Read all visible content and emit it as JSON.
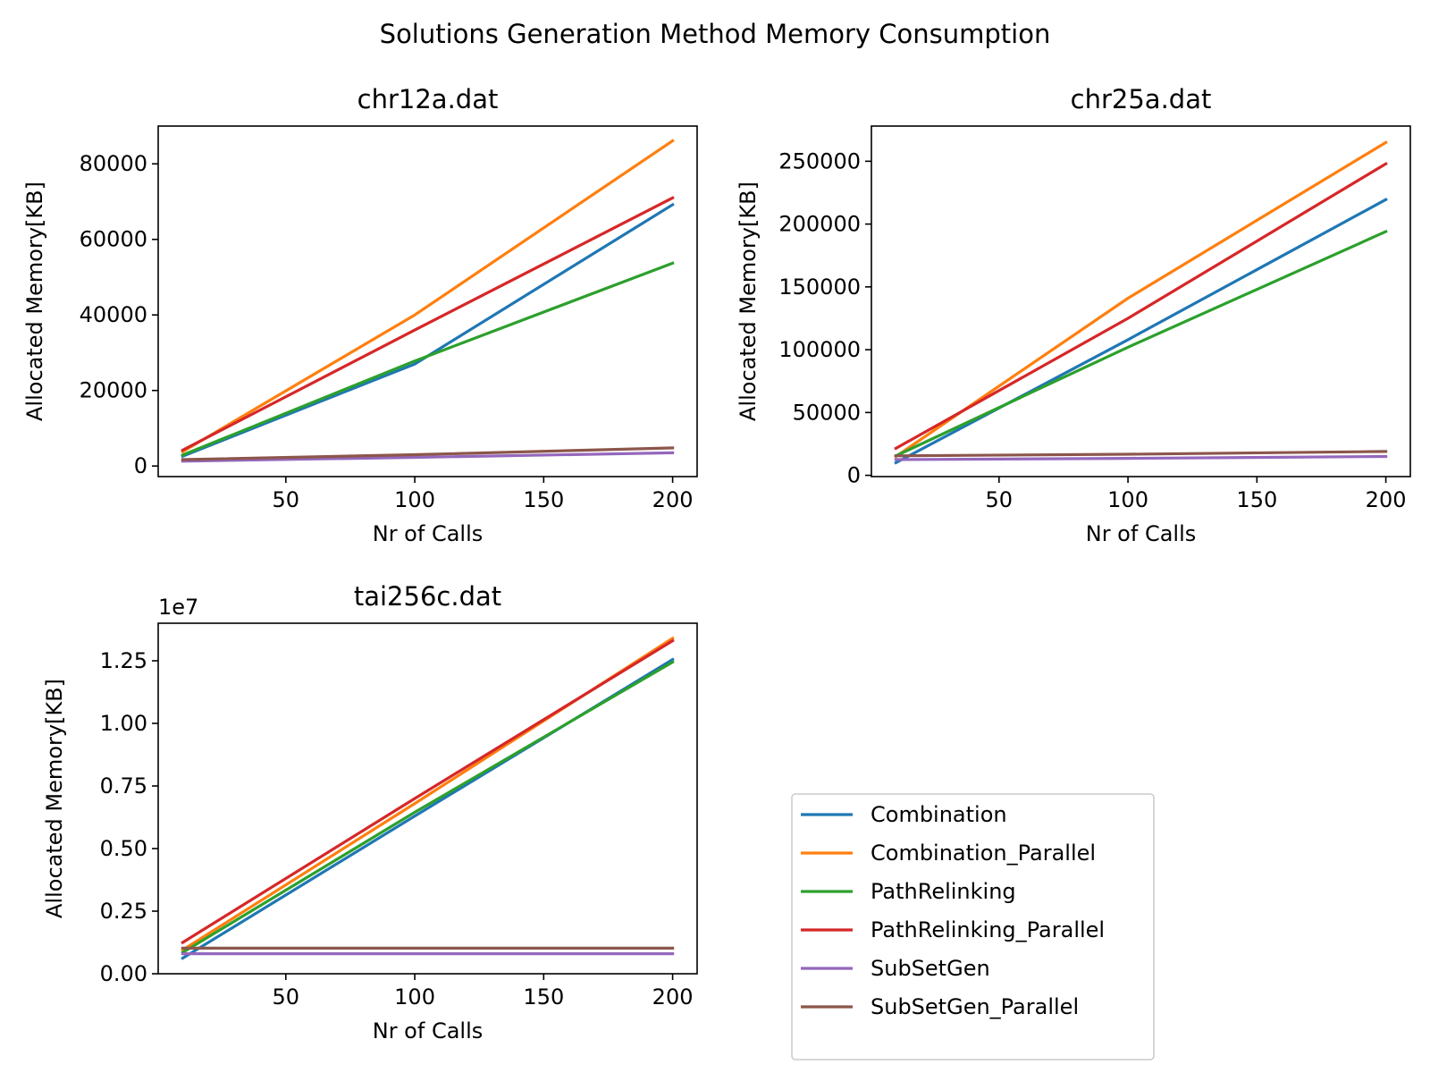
{
  "figure_title": "Solutions Generation Method Memory Consumption",
  "legend": {
    "placement": "lower-right empty panel",
    "entries": [
      {
        "label": "Combination",
        "color": "#1f77b4"
      },
      {
        "label": "Combination_Parallel",
        "color": "#ff7f0e"
      },
      {
        "label": "PathRelinking",
        "color": "#2ca02c"
      },
      {
        "label": "PathRelinking_Parallel",
        "color": "#d62728"
      },
      {
        "label": "SubSetGen",
        "color": "#9467bd"
      },
      {
        "label": "SubSetGen_Parallel",
        "color": "#8c564b"
      }
    ]
  },
  "chart_data": [
    {
      "type": "line",
      "title": "chr12a.dat",
      "xlabel": "Nr of Calls",
      "ylabel": "Allocated Memory[KB]",
      "x": [
        10,
        100,
        200
      ],
      "xticks": [
        50,
        100,
        150,
        200
      ],
      "xlim": [
        0.5,
        209.5
      ],
      "yticks": [
        0,
        20000,
        40000,
        60000,
        80000
      ],
      "ytick_labels": [
        "0",
        "20000",
        "40000",
        "60000",
        "80000"
      ],
      "ylim": [
        -2800,
        90000
      ],
      "offset_label": "",
      "grid": false,
      "series": [
        {
          "name": "Combination",
          "color": "#1f77b4",
          "values": [
            2600,
            27000,
            69200
          ]
        },
        {
          "name": "Combination_Parallel",
          "color": "#ff7f0e",
          "values": [
            3800,
            40000,
            86100
          ]
        },
        {
          "name": "PathRelinking",
          "color": "#2ca02c",
          "values": [
            2900,
            27800,
            53700
          ]
        },
        {
          "name": "PathRelinking_Parallel",
          "color": "#d62728",
          "values": [
            4200,
            36000,
            71000
          ]
        },
        {
          "name": "SubSetGen",
          "color": "#9467bd",
          "values": [
            1300,
            2300,
            3500
          ]
        },
        {
          "name": "SubSetGen_Parallel",
          "color": "#8c564b",
          "values": [
            1700,
            3000,
            4800
          ]
        }
      ]
    },
    {
      "type": "line",
      "title": "chr25a.dat",
      "xlabel": "Nr of Calls",
      "ylabel": "Allocated Memory[KB]",
      "x": [
        10,
        100,
        200
      ],
      "xticks": [
        50,
        100,
        150,
        200
      ],
      "xlim": [
        0.5,
        209.5
      ],
      "yticks": [
        0,
        50000,
        100000,
        150000,
        200000,
        250000
      ],
      "ytick_labels": [
        "0",
        "50000",
        "100000",
        "150000",
        "200000",
        "250000"
      ],
      "ylim": [
        -1000,
        278000
      ],
      "offset_label": "",
      "grid": false,
      "series": [
        {
          "name": "Combination",
          "color": "#1f77b4",
          "values": [
            10000,
            108000,
            219500
          ]
        },
        {
          "name": "Combination_Parallel",
          "color": "#ff7f0e",
          "values": [
            15000,
            141000,
            265000
          ]
        },
        {
          "name": "PathRelinking",
          "color": "#2ca02c",
          "values": [
            15500,
            102000,
            194000
          ]
        },
        {
          "name": "PathRelinking_Parallel",
          "color": "#d62728",
          "values": [
            21500,
            125000,
            248000
          ]
        },
        {
          "name": "SubSetGen",
          "color": "#9467bd",
          "values": [
            12500,
            13500,
            15000
          ]
        },
        {
          "name": "SubSetGen_Parallel",
          "color": "#8c564b",
          "values": [
            15500,
            16800,
            19000
          ]
        }
      ]
    },
    {
      "type": "line",
      "title": "tai256c.dat",
      "xlabel": "Nr of Calls",
      "ylabel": "Allocated Memory[KB]",
      "x": [
        10,
        100,
        200
      ],
      "xticks": [
        50,
        100,
        150,
        200
      ],
      "xlim": [
        0.5,
        209.5
      ],
      "yticks": [
        0,
        2500000,
        5000000,
        7500000,
        10000000,
        12500000
      ],
      "ytick_labels": [
        "0.00",
        "0.25",
        "0.50",
        "0.75",
        "1.00",
        "1.25"
      ],
      "ylim": [
        0,
        14000000
      ],
      "offset_label": "1e7",
      "grid": false,
      "series": [
        {
          "name": "Combination",
          "color": "#1f77b4",
          "values": [
            620000,
            6300000,
            12550000
          ]
        },
        {
          "name": "Combination_Parallel",
          "color": "#ff7f0e",
          "values": [
            950000,
            6800000,
            13400000
          ]
        },
        {
          "name": "PathRelinking",
          "color": "#2ca02c",
          "values": [
            850000,
            6450000,
            12450000
          ]
        },
        {
          "name": "PathRelinking_Parallel",
          "color": "#d62728",
          "values": [
            1250000,
            7000000,
            13300000
          ]
        },
        {
          "name": "SubSetGen",
          "color": "#9467bd",
          "values": [
            800000,
            800000,
            800000
          ]
        },
        {
          "name": "SubSetGen_Parallel",
          "color": "#8c564b",
          "values": [
            1020000,
            1020000,
            1020000
          ]
        }
      ]
    }
  ]
}
